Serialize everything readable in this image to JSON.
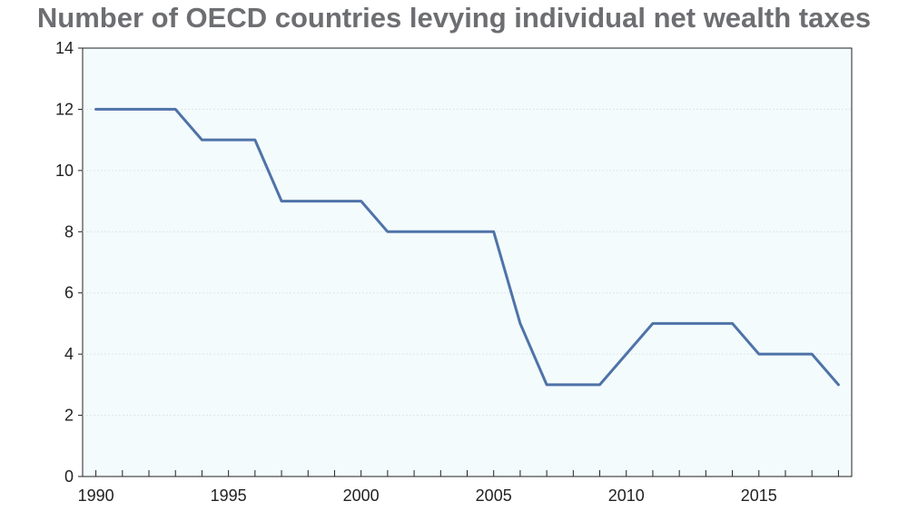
{
  "chart_data": {
    "type": "line",
    "title": "Number of OECD countries levying individual net wealth taxes",
    "xlabel": "",
    "ylabel": "",
    "x": [
      1990,
      1991,
      1992,
      1993,
      1994,
      1995,
      1996,
      1997,
      1998,
      1999,
      2000,
      2001,
      2002,
      2003,
      2004,
      2005,
      2006,
      2007,
      2008,
      2009,
      2010,
      2011,
      2012,
      2013,
      2014,
      2015,
      2016,
      2017,
      2018
    ],
    "series": [
      {
        "values": [
          12,
          12,
          12,
          12,
          11,
          11,
          11,
          9,
          9,
          9,
          9,
          8,
          8,
          8,
          8,
          8,
          5,
          3,
          3,
          3,
          4,
          5,
          5,
          5,
          5,
          4,
          4,
          4,
          3
        ]
      }
    ],
    "xlim": [
      1989.5,
      2018.5
    ],
    "ylim": [
      0,
      14
    ],
    "y_ticks": [
      0,
      2,
      4,
      6,
      8,
      10,
      12,
      14
    ],
    "x_tick_labels": [
      1990,
      1995,
      2000,
      2005,
      2010,
      2015
    ],
    "grid": true,
    "colors": {
      "line": "#4f73a8",
      "plot_background": "#f3fbfd",
      "gridline": "#dde6ea",
      "axis": "#222222",
      "title": "#6d6e71"
    }
  }
}
